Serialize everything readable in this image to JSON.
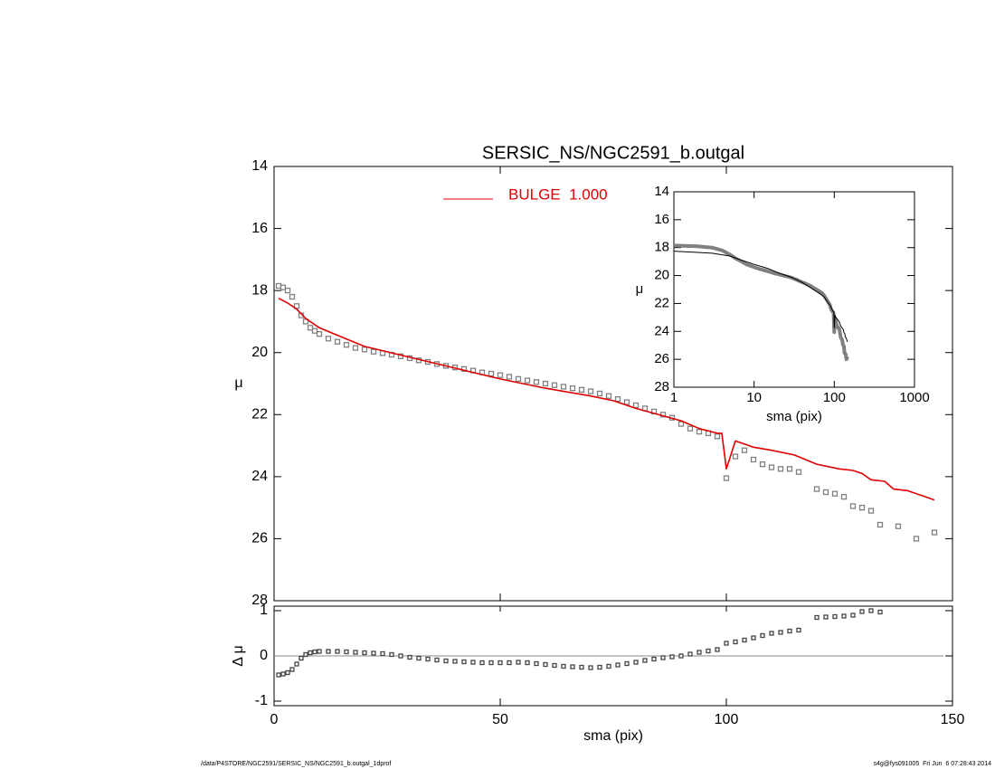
{
  "chart_data": [
    {
      "type": "scatter",
      "title": "SERSIC_NS/NGC2591_b.outgal",
      "ylabel": "μ",
      "xlim": [
        0,
        150
      ],
      "ylim": [
        28,
        14
      ],
      "yticks": [
        14,
        16,
        18,
        20,
        22,
        24,
        26,
        28
      ],
      "series": [
        {
          "color": "#808080",
          "x": [
            1,
            2,
            3,
            4,
            5,
            6,
            7,
            8,
            9,
            10,
            12,
            14,
            16,
            18,
            20,
            22,
            24,
            26,
            28,
            30,
            32,
            34,
            36,
            38,
            40,
            42,
            44,
            46,
            48,
            50,
            52,
            54,
            56,
            58,
            60,
            62,
            64,
            66,
            68,
            70,
            72,
            74,
            76,
            78,
            80,
            82,
            84,
            86,
            88,
            90,
            92,
            94,
            96,
            98,
            100,
            102,
            104,
            106,
            108,
            110,
            112,
            114,
            116,
            120,
            122,
            124,
            126,
            128,
            130,
            132,
            134,
            138,
            142,
            146
          ],
          "values": [
            17.85,
            17.9,
            18.0,
            18.2,
            18.5,
            18.8,
            19.0,
            19.2,
            19.3,
            19.4,
            19.55,
            19.65,
            19.75,
            19.85,
            19.9,
            19.97,
            20.02,
            20.07,
            20.12,
            20.18,
            20.25,
            20.3,
            20.37,
            20.43,
            20.48,
            20.53,
            20.58,
            20.64,
            20.68,
            20.73,
            20.78,
            20.85,
            20.9,
            20.95,
            21.0,
            21.05,
            21.1,
            21.15,
            21.2,
            21.25,
            21.32,
            21.4,
            21.5,
            21.6,
            21.7,
            21.8,
            21.9,
            22.0,
            22.1,
            22.3,
            22.45,
            22.55,
            22.6,
            22.7,
            24.05,
            23.35,
            23.15,
            23.45,
            23.6,
            23.7,
            23.75,
            23.75,
            23.85,
            24.4,
            24.5,
            24.55,
            24.65,
            24.95,
            25.0,
            25.1,
            25.55,
            25.6,
            26.0,
            25.8
          ]
        },
        {
          "name": "BULGE  1.000",
          "color": "#e00000",
          "x": [
            1,
            3,
            5,
            7,
            10,
            15,
            20,
            30,
            40,
            50,
            60,
            70,
            75,
            80,
            90,
            94,
            98,
            99,
            100,
            102,
            106,
            110,
            115,
            120,
            125,
            128,
            130,
            132,
            135,
            137,
            140,
            143,
            146
          ],
          "values": [
            18.25,
            18.4,
            18.6,
            18.9,
            19.2,
            19.5,
            19.8,
            20.15,
            20.5,
            20.85,
            21.15,
            21.4,
            21.55,
            21.8,
            22.2,
            22.45,
            22.6,
            22.6,
            23.75,
            22.85,
            23.05,
            23.15,
            23.3,
            23.6,
            23.75,
            23.8,
            23.9,
            24.1,
            24.15,
            24.4,
            24.45,
            24.6,
            24.75
          ]
        }
      ]
    },
    {
      "type": "scatter",
      "xlabel": "sma (pix)",
      "ylabel": "Δ μ",
      "xlim": [
        0,
        150
      ],
      "xticks": [
        0,
        50,
        100,
        150
      ],
      "ylim": [
        -1.1,
        1.1
      ],
      "yticks": [
        -1,
        0,
        1
      ],
      "color": "#444444",
      "x": [
        1,
        2,
        3,
        4,
        5,
        6,
        7,
        8,
        9,
        10,
        12,
        14,
        16,
        18,
        20,
        22,
        24,
        26,
        28,
        30,
        32,
        34,
        36,
        38,
        40,
        42,
        44,
        46,
        48,
        50,
        52,
        54,
        56,
        58,
        60,
        62,
        64,
        66,
        68,
        70,
        72,
        74,
        76,
        78,
        80,
        82,
        84,
        86,
        88,
        90,
        92,
        94,
        96,
        98,
        100,
        102,
        104,
        106,
        108,
        110,
        112,
        114,
        116,
        120,
        122,
        124,
        126,
        128,
        130,
        132,
        134
      ],
      "values": [
        -0.42,
        -0.4,
        -0.37,
        -0.3,
        -0.18,
        -0.05,
        0.03,
        0.07,
        0.09,
        0.1,
        0.1,
        0.1,
        0.09,
        0.08,
        0.07,
        0.06,
        0.05,
        0.03,
        0.0,
        -0.03,
        -0.05,
        -0.07,
        -0.09,
        -0.11,
        -0.12,
        -0.13,
        -0.14,
        -0.15,
        -0.15,
        -0.15,
        -0.15,
        -0.14,
        -0.15,
        -0.17,
        -0.19,
        -0.21,
        -0.23,
        -0.24,
        -0.25,
        -0.26,
        -0.25,
        -0.23,
        -0.2,
        -0.17,
        -0.14,
        -0.1,
        -0.07,
        -0.04,
        -0.02,
        0.0,
        0.04,
        0.08,
        0.11,
        0.14,
        0.28,
        0.31,
        0.35,
        0.4,
        0.45,
        0.5,
        0.52,
        0.55,
        0.57,
        0.85,
        0.86,
        0.87,
        0.88,
        0.9,
        0.98,
        1.0,
        0.97
      ]
    },
    {
      "type": "line",
      "xlog": true,
      "xlabel": "sma (pix)",
      "ylabel": "μ",
      "xlim": [
        1,
        1000
      ],
      "xticks": [
        1,
        10,
        100,
        1000
      ],
      "ylim": [
        28,
        14
      ],
      "yticks": [
        14,
        16,
        18,
        20,
        22,
        24,
        26,
        28
      ],
      "colors": [
        "#808080",
        "#000000"
      ]
    }
  ],
  "footer": {
    "left": "/data/P4STORE/NGC2591/SERSIC_NS/NGC2591_b.outgal_1dprof",
    "right": "s4g@fys091005  Fri Jun  6 07:28:43 2014"
  }
}
